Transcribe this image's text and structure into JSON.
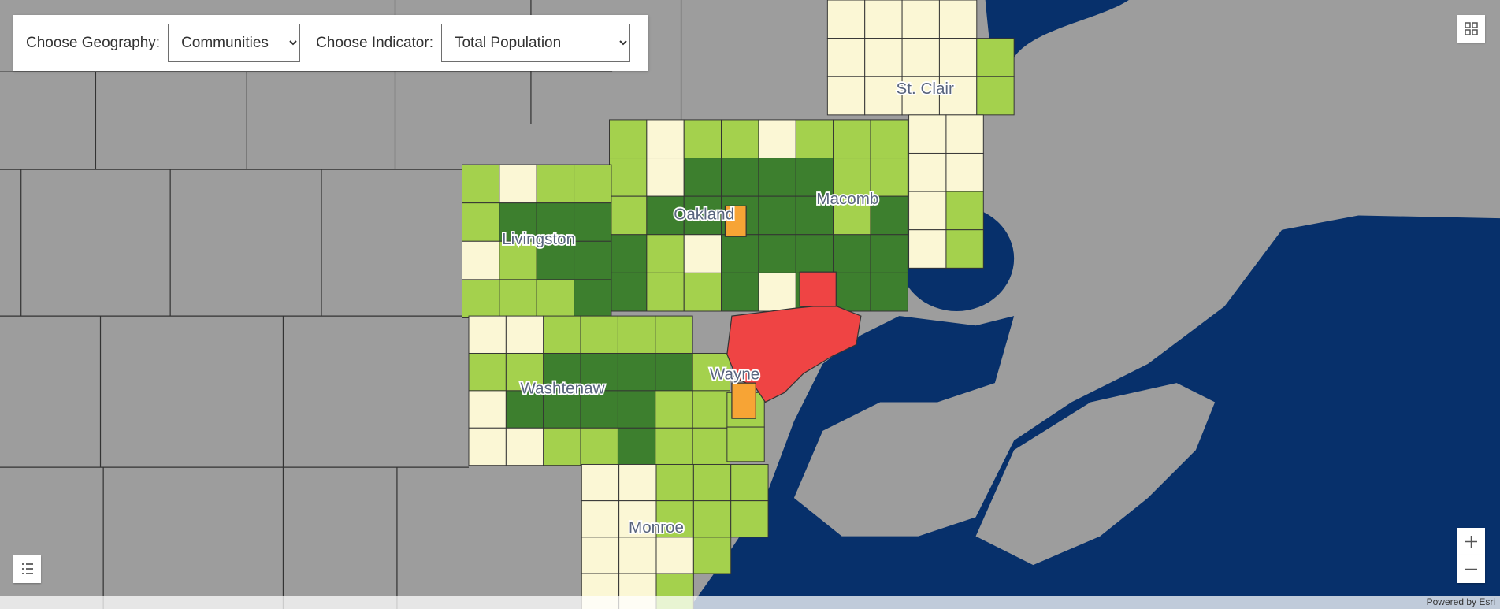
{
  "controls": {
    "geography_label": "Choose Geography:",
    "geography_value": "Communities",
    "indicator_label": "Choose Indicator:",
    "indicator_value": "Total Population"
  },
  "map_labels": [
    "St. Clair",
    "Oakland",
    "Macomb",
    "Livingston",
    "Washtenaw",
    "Wayne",
    "Monroe"
  ],
  "attribution": "Powered by Esri"
}
